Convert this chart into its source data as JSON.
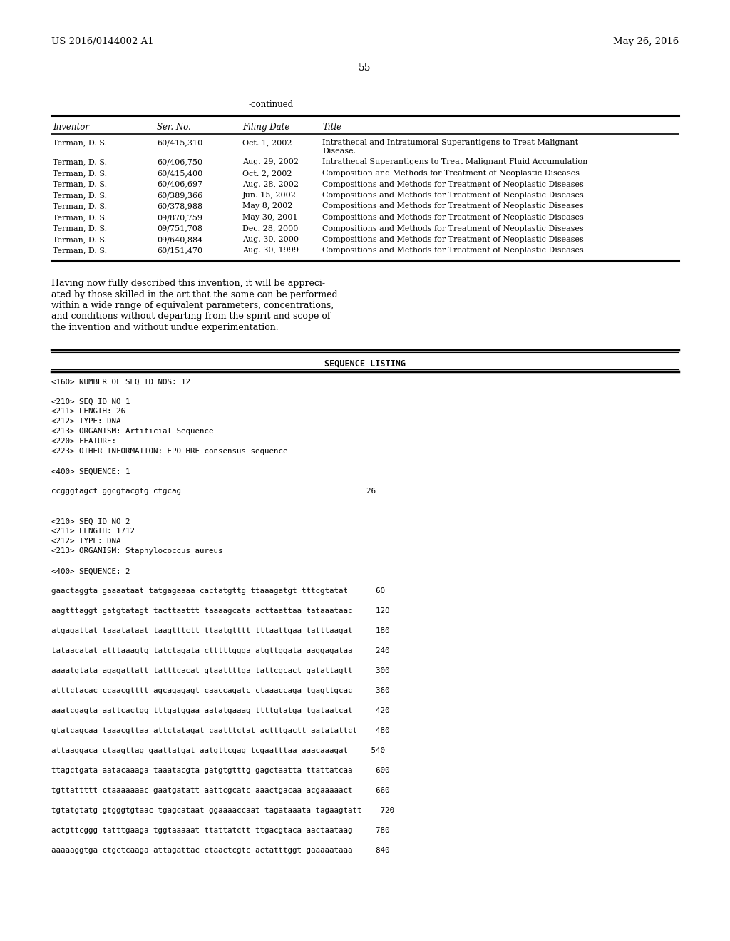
{
  "bg_color": "#ffffff",
  "header_left": "US 2016/0144002 A1",
  "header_right": "May 26, 2016",
  "page_number": "55",
  "continued_label": "-continued",
  "table_headers": [
    "Inventor",
    "Ser. No.",
    "Filing Date",
    "Title"
  ],
  "table_rows": [
    [
      "Terman, D. S.",
      "60/415,310",
      "Oct. 1, 2002",
      "Intrathecal and Intratumoral Superantigens to Treat Malignant\nDisease."
    ],
    [
      "Terman, D. S.",
      "60/406,750",
      "Aug. 29, 2002",
      "Intrathecal Superantigens to Treat Malignant Fluid Accumulation"
    ],
    [
      "Terman, D. S.",
      "60/415,400",
      "Oct. 2, 2002",
      "Composition and Methods for Treatment of Neoplastic Diseases"
    ],
    [
      "Terman, D. S.",
      "60/406,697",
      "Aug. 28, 2002",
      "Compositions and Methods for Treatment of Neoplastic Diseases"
    ],
    [
      "Terman, D. S.",
      "60/389,366",
      "Jun. 15, 2002",
      "Compositions and Methods for Treatment of Neoplastic Diseases"
    ],
    [
      "Terman, D. S.",
      "60/378,988",
      "May 8, 2002",
      "Compositions and Methods for Treatment of Neoplastic Diseases"
    ],
    [
      "Terman, D. S.",
      "09/870,759",
      "May 30, 2001",
      "Compositions and Methods for Treatment of Neoplastic Diseases"
    ],
    [
      "Terman, D. S.",
      "09/751,708",
      "Dec. 28, 2000",
      "Compositions and Methods for Treatment of Neoplastic Diseases"
    ],
    [
      "Terman, D. S.",
      "09/640,884",
      "Aug. 30, 2000",
      "Compositions and Methods for Treatment of Neoplastic Diseases"
    ],
    [
      "Terman, D. S.",
      "60/151,470",
      "Aug. 30, 1999",
      "Compositions and Methods for Treatment of Neoplastic Diseases"
    ]
  ],
  "para_lines": [
    "Having now fully described this invention, it will be appreci-",
    "ated by those skilled in the art that the same can be performed",
    "within a wide range of equivalent parameters, concentrations,",
    "and conditions without departing from the spirit and scope of",
    "the invention and without undue experimentation."
  ],
  "sequence_listing_title": "SEQUENCE LISTING",
  "sequence_lines": [
    "<160> NUMBER OF SEQ ID NOS: 12",
    "",
    "<210> SEQ ID NO 1",
    "<211> LENGTH: 26",
    "<212> TYPE: DNA",
    "<213> ORGANISM: Artificial Sequence",
    "<220> FEATURE:",
    "<223> OTHER INFORMATION: EPO HRE consensus sequence",
    "",
    "<400> SEQUENCE: 1",
    "",
    "ccgggtagct ggcgtacgtg ctgcag                                        26",
    "",
    "",
    "<210> SEQ ID NO 2",
    "<211> LENGTH: 1712",
    "<212> TYPE: DNA",
    "<213> ORGANISM: Staphylococcus aureus",
    "",
    "<400> SEQUENCE: 2",
    "",
    "gaactaggta gaaaataat tatgagaaaa cactatgttg ttaaagatgt tttcgtatat      60",
    "",
    "aagtttaggt gatgtatagt tacttaattt taaaagcata acttaattaa tataaataac     120",
    "",
    "atgagattat taaatataat taagtttctt ttaatgtttt tttaattgaa tatttaagat     180",
    "",
    "tataacatat atttaaagtg tatctagata ctttttggga atgttggata aaggagataa     240",
    "",
    "aaaatgtata agagattatt tatttcacat gtaattttga tattcgcact gatattagtt     300",
    "",
    "atttctacac ccaacgtttt agcagagagt caaccagatc ctaaaccaga tgagttgcac     360",
    "",
    "aaatcgagta aattcactgg tttgatggaa aatatgaaag ttttgtatga tgataatcat     420",
    "",
    "gtatcagcaa taaacgttaa attctatagat caatttctat actttgactt aatatattct    480",
    "",
    "attaaggaca ctaagttag gaattatgat aatgttcgag tcgaatttaa aaacaaagat     540",
    "",
    "ttagctgata aatacaaaga taaatacgta gatgtgtttg gagctaatta ttattatcaa     600",
    "",
    "tgttattttt ctaaaaaaac gaatgatatt aattcgcatc aaactgacaa acgaaaaact     660",
    "",
    "tgtatgtatg gtgggtgtaac tgagcataat ggaaaaccaat tagataaata tagaagtatt    720",
    "",
    "actgttcggg tatttgaaga tggtaaaaat ttattatctt ttgacgtaca aactaataag     780",
    "",
    "aaaaaggtga ctgctcaaga attagattac ctaactcgtc actatttggt gaaaaataaa     840"
  ]
}
